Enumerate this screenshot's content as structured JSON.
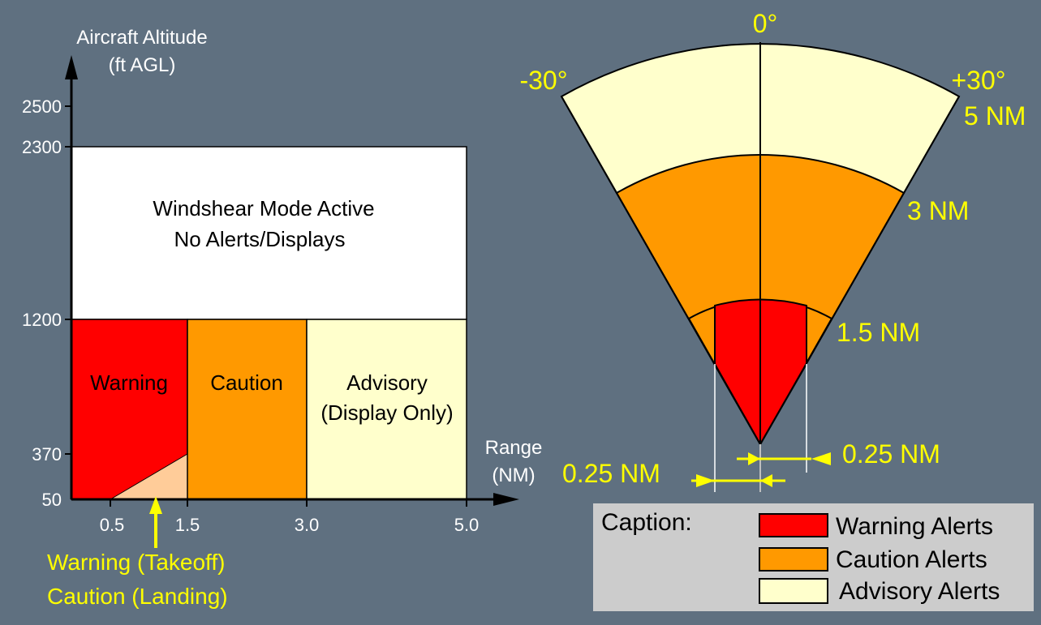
{
  "colors": {
    "background": "#5f7080",
    "warning": "#ff0000",
    "caution": "#ff9900",
    "advisory": "#ffffcc",
    "inactive": "#ffffff",
    "takeoff_landing": "#ffcc99",
    "annotation": "#ffff00",
    "caption_box": "#cccccc"
  },
  "left_chart": {
    "y_axis_title_line1": "Aircraft Altitude",
    "y_axis_title_line2": "(ft AGL)",
    "x_axis_title_line1": "Range",
    "x_axis_title_line2": "(NM)",
    "y_ticks": [
      "2500",
      "2300",
      "1200",
      "370",
      "50"
    ],
    "x_ticks": [
      "0.5",
      "1.5",
      "3.0",
      "5.0"
    ],
    "inactive_zone_line1": "Windshear Mode Active",
    "inactive_zone_line2": "No Alerts/Displays",
    "warning_label": "Warning",
    "caution_label": "Caution",
    "advisory_label_line1": "Advisory",
    "advisory_label_line2": "(Display Only)",
    "pointer_line1": "Warning (Takeoff)",
    "pointer_line2": "Caution (Landing)"
  },
  "sector": {
    "angle_center": "0°",
    "angle_left": "-30°",
    "angle_right": "+30°",
    "range_5": "5 NM",
    "range_3": "3 NM",
    "range_1_5": "1.5 NM",
    "width_left": "0.25 NM",
    "width_right": "0.25 NM"
  },
  "caption": {
    "title": "Caption:",
    "items": [
      {
        "label": "Warning Alerts",
        "color": "#ff0000"
      },
      {
        "label": "Caution Alerts",
        "color": "#ff9900"
      },
      {
        "label": "Advisory Alerts",
        "color": "#ffffcc"
      }
    ]
  }
}
